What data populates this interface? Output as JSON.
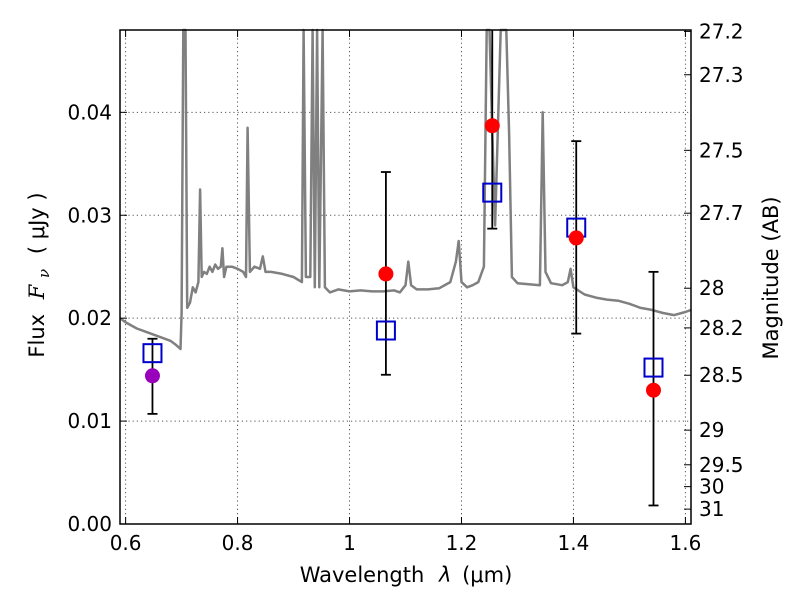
{
  "chart_data": {
    "type": "scatter",
    "xlabel": "Wavelength",
    "xlabel_symbol": "λ",
    "xlabel_unit": "(μm)",
    "ylabel": "Flux",
    "ylabel_symbol": "F",
    "ylabel_symbol_sub": "ν",
    "ylabel_unit": "( μJy )",
    "y2label": "Magnitude (AB)",
    "xlim": [
      0.59,
      1.61
    ],
    "ylim": [
      0.0,
      0.048
    ],
    "grid": true,
    "x_ticks": [
      {
        "value": 0.6,
        "label": "0.6"
      },
      {
        "value": 0.8,
        "label": "0.8"
      },
      {
        "value": 1.0,
        "label": "1"
      },
      {
        "value": 1.2,
        "label": "1.2"
      },
      {
        "value": 1.4,
        "label": "1.4"
      },
      {
        "value": 1.6,
        "label": "1.6"
      }
    ],
    "y_ticks": [
      {
        "value": 0.0,
        "label": "0.00"
      },
      {
        "value": 0.01,
        "label": "0.01"
      },
      {
        "value": 0.02,
        "label": "0.02"
      },
      {
        "value": 0.03,
        "label": "0.03"
      },
      {
        "value": 0.04,
        "label": "0.04"
      }
    ],
    "y2_ticks": [
      {
        "value": 27.2,
        "label": "27.2"
      },
      {
        "value": 27.3,
        "label": "27.3"
      },
      {
        "value": 27.5,
        "label": "27.5"
      },
      {
        "value": 27.7,
        "label": "27.7"
      },
      {
        "value": 28.0,
        "label": "28"
      },
      {
        "value": 28.2,
        "label": "28.2"
      },
      {
        "value": 28.5,
        "label": "28.5"
      },
      {
        "value": 29.0,
        "label": "29"
      },
      {
        "value": 29.5,
        "label": "29.5"
      },
      {
        "value": 30.0,
        "label": "30"
      },
      {
        "value": 31.0,
        "label": "31"
      }
    ],
    "magnitude_zero_point": 23.9,
    "series": [
      {
        "kind": "template_spectrum",
        "color": "#808080",
        "points": [
          [
            0.59,
            0.02
          ],
          [
            0.6,
            0.0196
          ],
          [
            0.62,
            0.019
          ],
          [
            0.64,
            0.0186
          ],
          [
            0.66,
            0.0182
          ],
          [
            0.68,
            0.0178
          ],
          [
            0.69,
            0.0174
          ],
          [
            0.698,
            0.017
          ],
          [
            0.7,
            0.0205
          ],
          [
            0.703,
            0.05
          ],
          [
            0.707,
            0.05
          ],
          [
            0.71,
            0.021
          ],
          [
            0.715,
            0.0215
          ],
          [
            0.72,
            0.023
          ],
          [
            0.725,
            0.0225
          ],
          [
            0.73,
            0.0235
          ],
          [
            0.733,
            0.0325
          ],
          [
            0.736,
            0.024
          ],
          [
            0.74,
            0.0245
          ],
          [
            0.745,
            0.0243
          ],
          [
            0.75,
            0.025
          ],
          [
            0.755,
            0.0245
          ],
          [
            0.76,
            0.0252
          ],
          [
            0.765,
            0.0248
          ],
          [
            0.77,
            0.025
          ],
          [
            0.773,
            0.0268
          ],
          [
            0.776,
            0.024
          ],
          [
            0.78,
            0.025
          ],
          [
            0.79,
            0.025
          ],
          [
            0.8,
            0.0248
          ],
          [
            0.81,
            0.0245
          ],
          [
            0.815,
            0.024
          ],
          [
            0.818,
            0.0385
          ],
          [
            0.822,
            0.0245
          ],
          [
            0.83,
            0.025
          ],
          [
            0.84,
            0.0248
          ],
          [
            0.845,
            0.026
          ],
          [
            0.85,
            0.0245
          ],
          [
            0.86,
            0.0245
          ],
          [
            0.88,
            0.0243
          ],
          [
            0.9,
            0.024
          ],
          [
            0.915,
            0.0235
          ],
          [
            0.918,
            0.05
          ],
          [
            0.922,
            0.024
          ],
          [
            0.93,
            0.024
          ],
          [
            0.934,
            0.05
          ],
          [
            0.938,
            0.023
          ],
          [
            0.942,
            0.05
          ],
          [
            0.946,
            0.023
          ],
          [
            0.952,
            0.05
          ],
          [
            0.956,
            0.023
          ],
          [
            0.965,
            0.0225
          ],
          [
            0.98,
            0.0228
          ],
          [
            1.0,
            0.0226
          ],
          [
            1.02,
            0.0227
          ],
          [
            1.04,
            0.0226
          ],
          [
            1.06,
            0.0226
          ],
          [
            1.08,
            0.0227
          ],
          [
            1.09,
            0.0225
          ],
          [
            1.1,
            0.0232
          ],
          [
            1.105,
            0.0255
          ],
          [
            1.11,
            0.0232
          ],
          [
            1.12,
            0.0228
          ],
          [
            1.14,
            0.0228
          ],
          [
            1.16,
            0.0229
          ],
          [
            1.18,
            0.0235
          ],
          [
            1.19,
            0.0255
          ],
          [
            1.195,
            0.0275
          ],
          [
            1.2,
            0.0235
          ],
          [
            1.21,
            0.023
          ],
          [
            1.22,
            0.0232
          ],
          [
            1.23,
            0.0235
          ],
          [
            1.24,
            0.025
          ],
          [
            1.245,
            0.05
          ],
          [
            1.25,
            0.05
          ],
          [
            1.255,
            0.038
          ],
          [
            1.26,
            0.029
          ],
          [
            1.27,
            0.05
          ],
          [
            1.28,
            0.05
          ],
          [
            1.285,
            0.038
          ],
          [
            1.29,
            0.024
          ],
          [
            1.3,
            0.0234
          ],
          [
            1.32,
            0.0233
          ],
          [
            1.34,
            0.0232
          ],
          [
            1.345,
            0.04
          ],
          [
            1.35,
            0.0245
          ],
          [
            1.36,
            0.0234
          ],
          [
            1.38,
            0.0232
          ],
          [
            1.39,
            0.0235
          ],
          [
            1.395,
            0.0248
          ],
          [
            1.4,
            0.023
          ],
          [
            1.42,
            0.0223
          ],
          [
            1.44,
            0.022
          ],
          [
            1.46,
            0.0218
          ],
          [
            1.48,
            0.0217
          ],
          [
            1.5,
            0.0214
          ],
          [
            1.52,
            0.021
          ],
          [
            1.54,
            0.0208
          ],
          [
            1.56,
            0.0205
          ],
          [
            1.58,
            0.0203
          ],
          [
            1.6,
            0.0206
          ],
          [
            1.61,
            0.0208
          ]
        ]
      },
      {
        "kind": "model_photometry",
        "marker": "open-square",
        "color": "#0000cc",
        "points": [
          [
            0.648,
            0.0166
          ],
          [
            1.065,
            0.0188
          ],
          [
            1.255,
            0.0322
          ],
          [
            1.405,
            0.0288
          ],
          [
            1.543,
            0.0152
          ]
        ]
      },
      {
        "kind": "observed_photometry",
        "marker": "filled-circle",
        "points": [
          {
            "x": 0.648,
            "y": 0.0144,
            "yerr_low": 0.0107,
            "yerr_high": 0.018,
            "color": "#9900bb"
          },
          {
            "x": 1.065,
            "y": 0.0243,
            "yerr_low": 0.0145,
            "yerr_high": 0.0342,
            "color": "#ff0000"
          },
          {
            "x": 1.255,
            "y": 0.0387,
            "yerr_low": 0.0287,
            "yerr_high": 0.05,
            "color": "#ff0000"
          },
          {
            "x": 1.405,
            "y": 0.0278,
            "yerr_low": 0.0185,
            "yerr_high": 0.0372,
            "color": "#ff0000"
          },
          {
            "x": 1.543,
            "y": 0.013,
            "yerr_low": 0.0018,
            "yerr_high": 0.0245,
            "color": "#ff0000"
          }
        ]
      }
    ]
  }
}
